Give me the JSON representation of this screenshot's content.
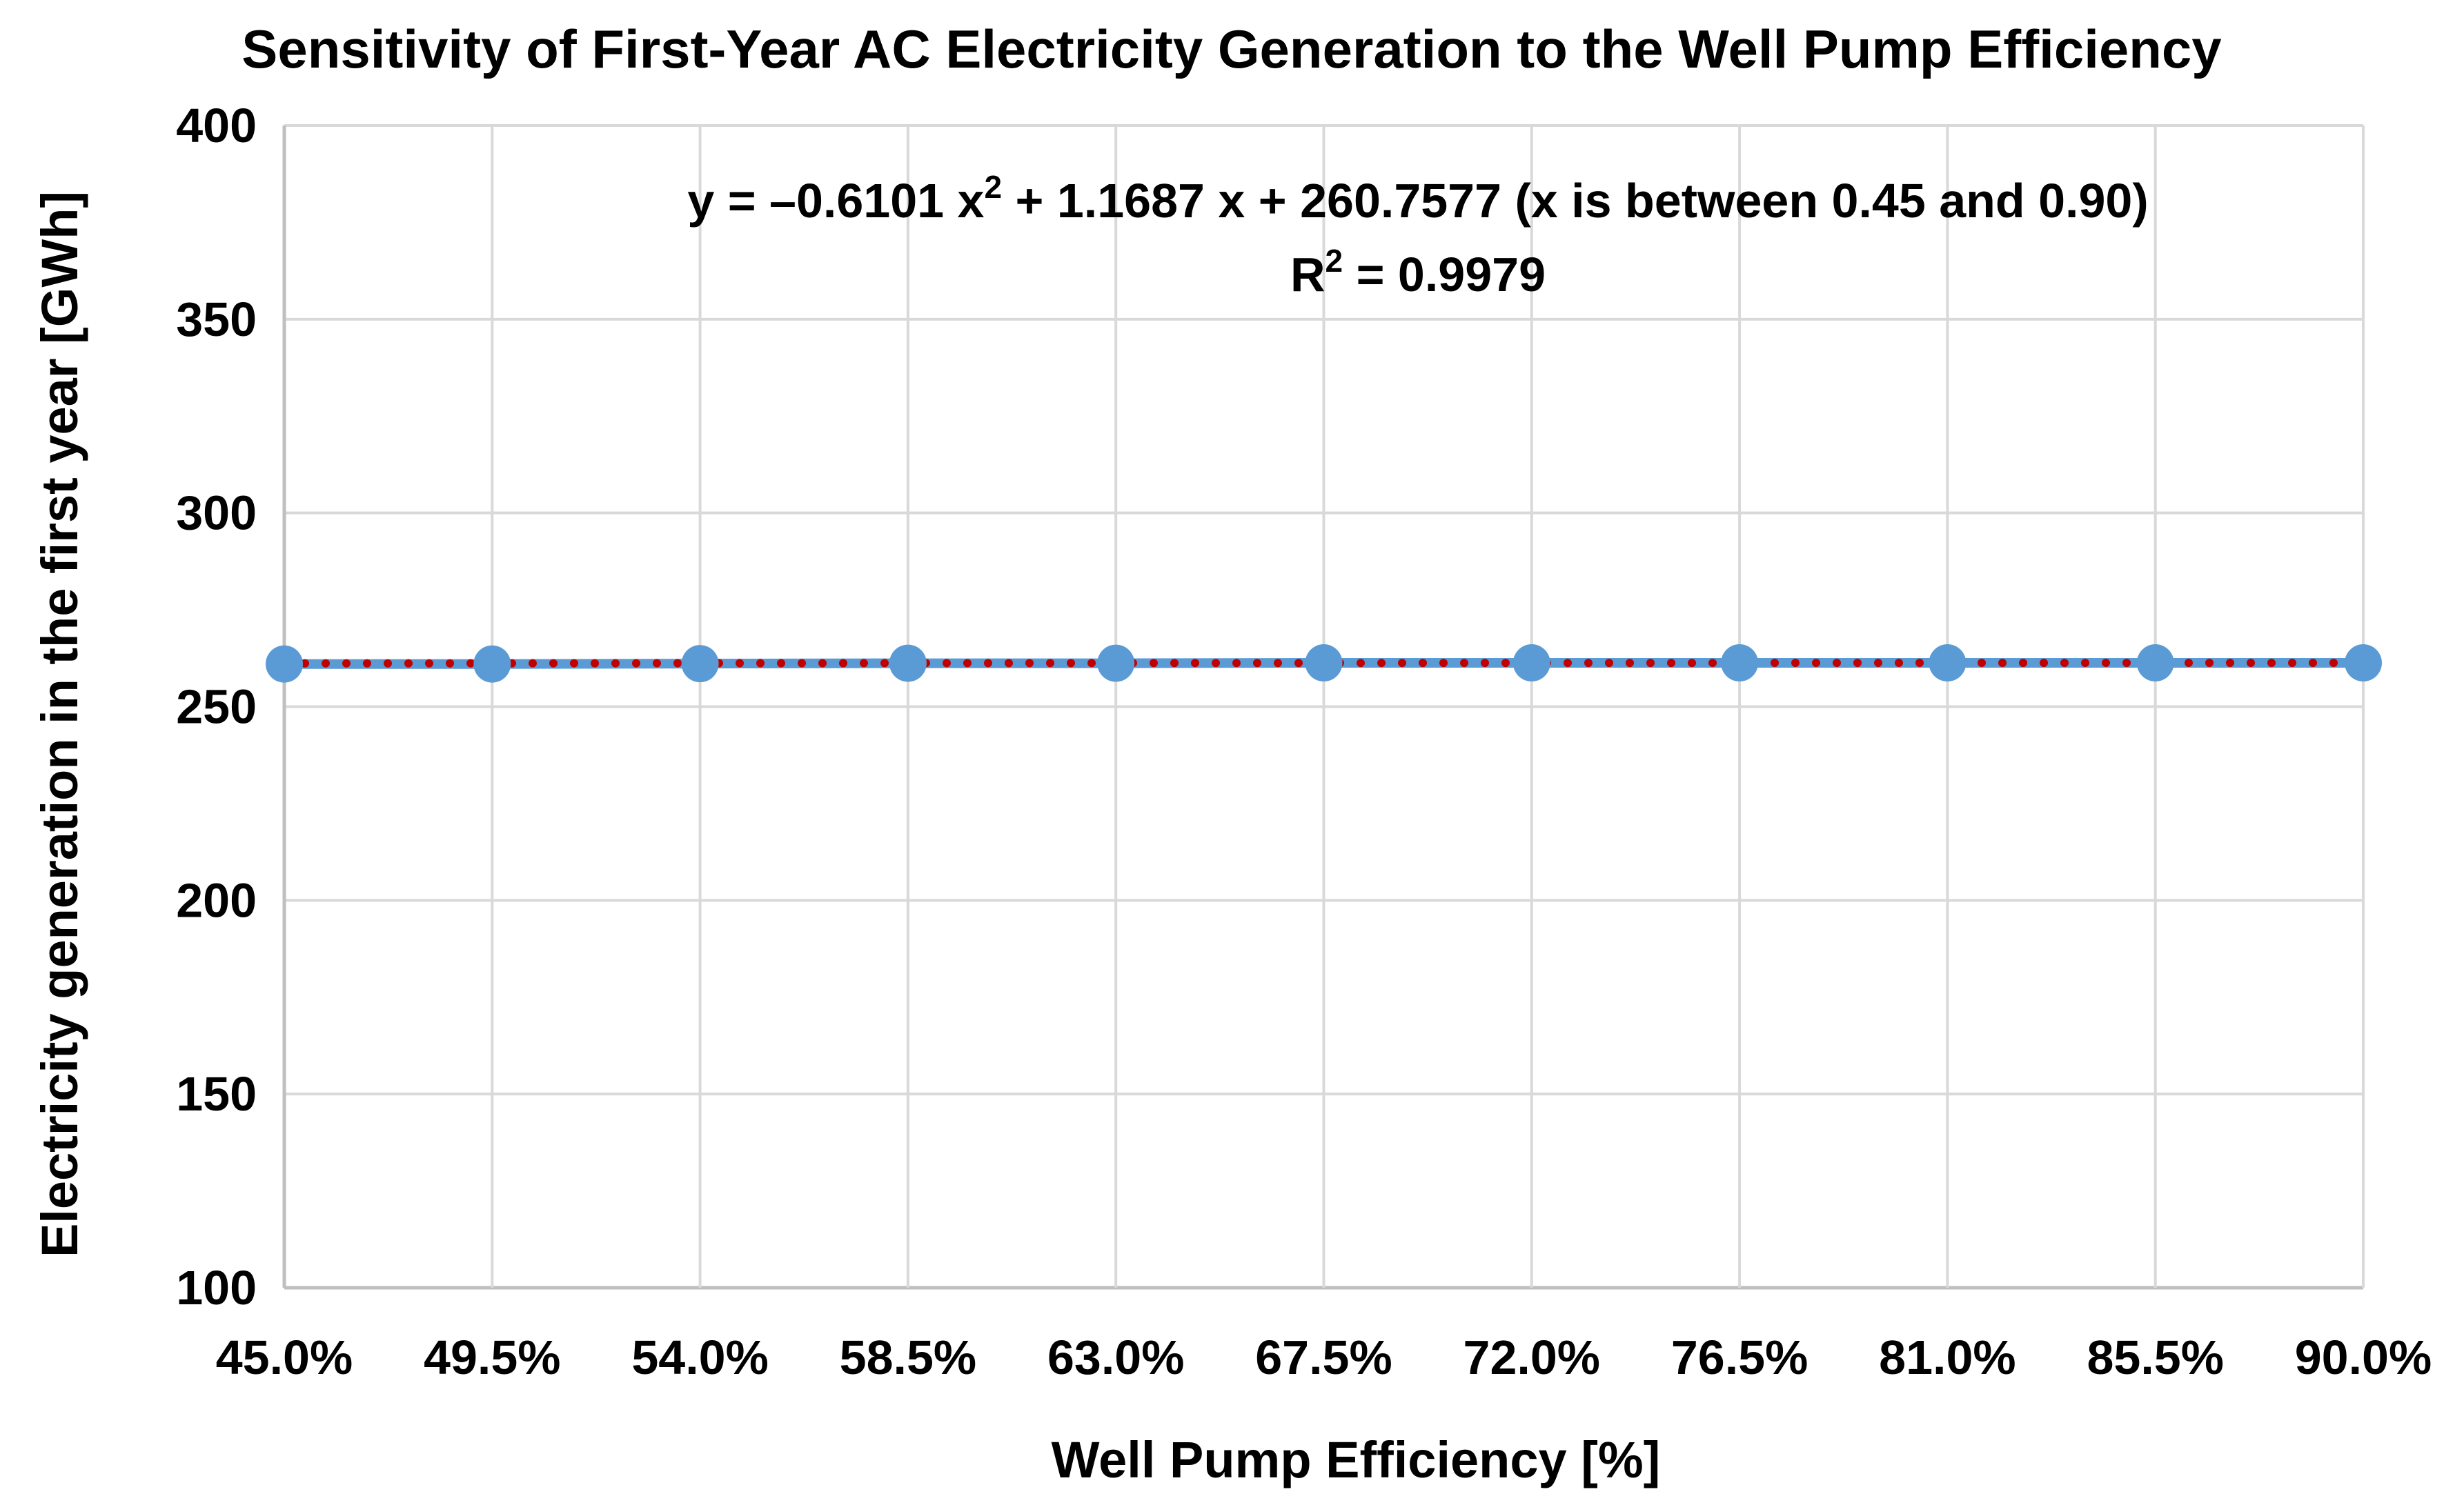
{
  "chart_data": {
    "type": "line",
    "title": "Sensitivity of First-Year AC Electricity Generation to the Well Pump Efficiency",
    "xlabel": "Well Pump Efficiency [%]",
    "ylabel": "Electricity generation in the first year [GWh]",
    "categories": [
      "45.0%",
      "49.5%",
      "54.0%",
      "58.5%",
      "63.0%",
      "67.5%",
      "72.0%",
      "76.5%",
      "81.0%",
      "85.5%",
      "90.0%"
    ],
    "series": [
      {
        "values": [
          261.0,
          261.0,
          261.1,
          261.2,
          261.2,
          261.3,
          261.3,
          261.3,
          261.3,
          261.3,
          261.3
        ],
        "color": "#5b9bd5",
        "marker": "circle"
      }
    ],
    "trendline": {
      "type": "polynomial-2",
      "color": "#c00000",
      "style": "dotted",
      "coefficients": [
        -0.6101,
        1.1687,
        260.7577
      ]
    },
    "annotation": {
      "equation_prefix": "y = –0.6101 x",
      "equation_exp": "2",
      "equation_suffix": " + 1.1687 x + 260.7577 (x is between 0.45 and 0.90)",
      "r2_prefix": "R",
      "r2_exp": "2",
      "r2_suffix": " = 0.9979"
    },
    "ylim": [
      100,
      400
    ],
    "yticks": [
      "100",
      "150",
      "200",
      "250",
      "300",
      "350",
      "400"
    ],
    "grid": true,
    "legend": "none"
  }
}
